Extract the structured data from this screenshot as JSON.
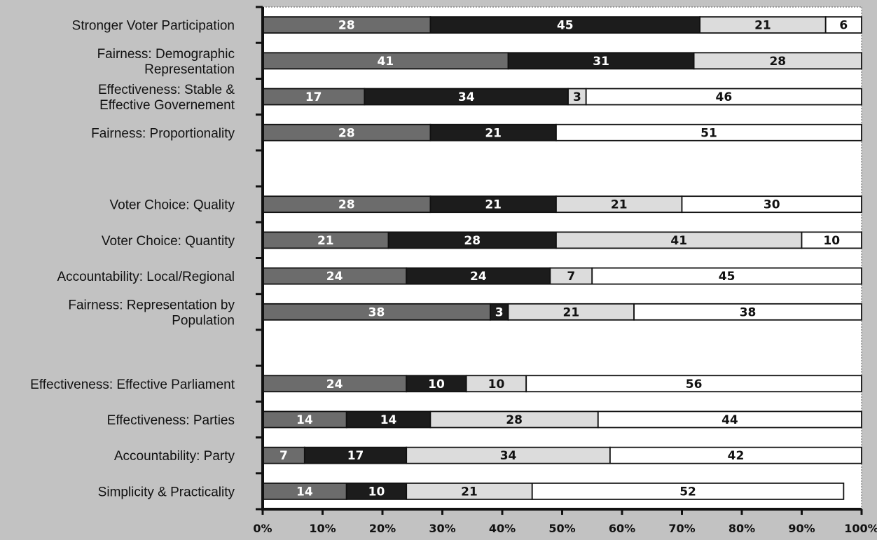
{
  "chart_data": {
    "type": "bar",
    "orientation": "horizontal",
    "stacked": true,
    "title": "",
    "xlabel": "",
    "ylabel": "",
    "xlim": [
      0,
      100
    ],
    "x_tick_labels": [
      "0%",
      "10%",
      "20%",
      "30%",
      "40%",
      "50%",
      "60%",
      "70%",
      "80%",
      "90%",
      "100%"
    ],
    "series_colors": [
      "#6c6c6c",
      "#1c1c1c",
      "#dcdcdc",
      "#ffffff"
    ],
    "label_colors": [
      "#ffffff",
      "#ffffff",
      "#111111",
      "#111111"
    ],
    "rows": [
      {
        "label": "Stronger Voter Participation",
        "values": [
          28,
          45,
          21,
          6
        ]
      },
      {
        "label": "Fairness: Demographic\nRepresentation",
        "values": [
          41,
          31,
          28,
          0
        ]
      },
      {
        "label": "Effectiveness: Stable &\nEffective Governement",
        "values": [
          17,
          34,
          3,
          46
        ]
      },
      {
        "label": "Fairness: Proportionality",
        "values": [
          28,
          21,
          0,
          51
        ]
      },
      {
        "label": "",
        "values": [],
        "gap": true
      },
      {
        "label": "Voter Choice: Quality",
        "values": [
          28,
          21,
          21,
          30
        ]
      },
      {
        "label": "Voter Choice: Quantity",
        "values": [
          21,
          28,
          41,
          10
        ]
      },
      {
        "label": "Accountability: Local/Regional",
        "values": [
          24,
          24,
          7,
          45
        ]
      },
      {
        "label": "Fairness: Representation by\nPopulation",
        "values": [
          38,
          3,
          21,
          38
        ]
      },
      {
        "label": "",
        "values": [],
        "gap": true
      },
      {
        "label": "Effectiveness: Effective Parliament",
        "values": [
          24,
          10,
          10,
          56
        ]
      },
      {
        "label": "Effectiveness: Parties",
        "values": [
          14,
          14,
          28,
          44
        ]
      },
      {
        "label": "Accountability: Party",
        "values": [
          7,
          17,
          34,
          42
        ]
      },
      {
        "label": "Simplicity & Practicality",
        "values": [
          14,
          10,
          21,
          52
        ]
      }
    ]
  }
}
